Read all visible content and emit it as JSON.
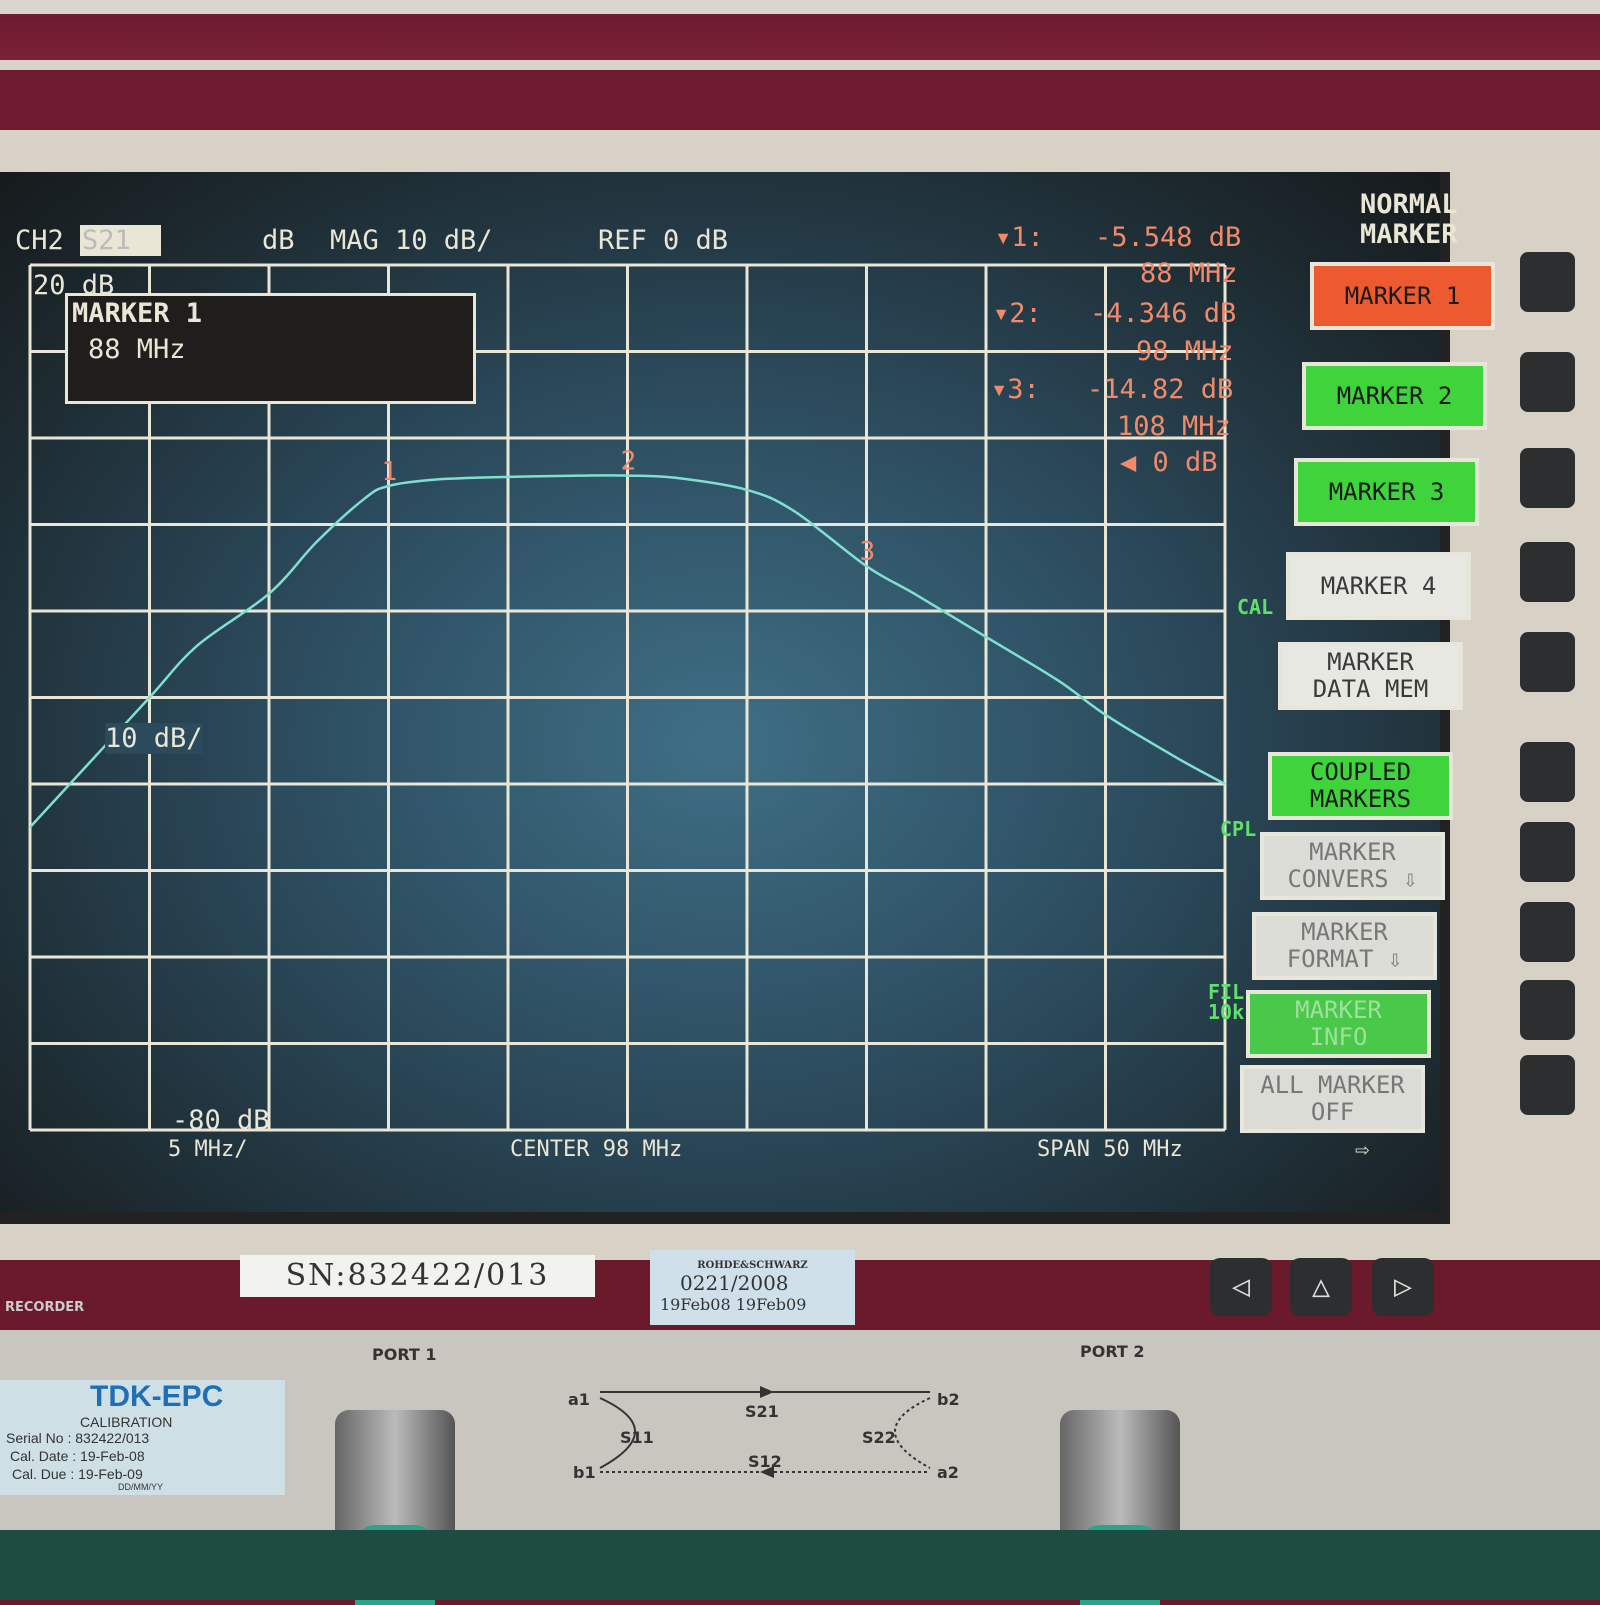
{
  "header": {
    "channel": "CH2",
    "parameter": "S21",
    "format_unit": "dB",
    "format": "MAG 10 dB/",
    "reference": "REF 0 dB"
  },
  "marker_popup": {
    "title": "MARKER 1",
    "value": "88 MHz"
  },
  "marker_readout": [
    {
      "label": "1:",
      "value": "-5.548 dB",
      "freq": "88 MHz"
    },
    {
      "label": "2:",
      "value": "-4.346 dB",
      "freq": "98 MHz"
    },
    {
      "label": "3:",
      "value": "-14.82 dB",
      "freq": "108 MHz"
    }
  ],
  "ref_indicator": "0 dB",
  "plot_labels": {
    "top": "20 dB",
    "scale": "10 dB/",
    "bottom": "-80 dB"
  },
  "footer": {
    "per_div": "5 MHz/",
    "center": "CENTER 98 MHz",
    "span": "SPAN 50 MHz"
  },
  "status": {
    "cal": "CAL",
    "cpl": "CPL",
    "fil": "FIL",
    "fil_bw": "10k"
  },
  "softkey_title": "NORMAL\nMARKER",
  "softkeys": [
    {
      "label": "MARKER 1",
      "state": "active"
    },
    {
      "label": "MARKER 2",
      "state": "on"
    },
    {
      "label": "MARKER 3",
      "state": "on"
    },
    {
      "label": "MARKER 4",
      "state": "off"
    },
    {
      "label": "MARKER\nDATA MEM",
      "state": "off"
    },
    {
      "label": "COUPLED\nMARKERS",
      "state": "on"
    },
    {
      "label": "MARKER\nCONVERS ⇩",
      "state": "off"
    },
    {
      "label": "MARKER\nFORMAT ⇩",
      "state": "off"
    },
    {
      "label": "MARKER\nINFO",
      "state": "on"
    },
    {
      "label": "ALL MARKER\nOFF",
      "state": "off"
    }
  ],
  "colors": {
    "trace": "#7fe0d0",
    "marker": "#f08a6a",
    "active_key": "#ee5a30",
    "on_key": "#3fd33c",
    "grid": "#e9e6d6"
  },
  "labels": {
    "serial": "SN:832422/013",
    "rs_brand": "ROHDE&SCHWARZ",
    "rs_cal": "0221/2008",
    "rs_dates": "19Feb08  19Feb09",
    "port1": "PORT 1",
    "port2": "PORT 2",
    "tdk_brand": "TDK-EPC",
    "tdk_title": "CALIBRATION",
    "tdk_serial": "Serial No : 832422/013",
    "tdk_cal_date": "Cal. Date : 19-Feb-08",
    "tdk_cal_due": "Cal. Due : 19-Feb-09",
    "tdk_format": "DD/MM/YY",
    "recorder": "RECORDER",
    "sparams": {
      "a1": "a1",
      "b1": "b1",
      "a2": "a2",
      "b2": "b2",
      "s21": "S21",
      "s12": "S12",
      "s11": "S11",
      "s22": "S22"
    }
  },
  "chart_data": {
    "type": "line",
    "xlabel": "",
    "ylabel": "",
    "xlim": [
      73,
      123
    ],
    "ylim": [
      -80,
      20
    ],
    "x_divisions": 10,
    "y_divisions": 10,
    "grid": true,
    "x_unit": "MHz",
    "y_unit": "dB",
    "series": [
      {
        "x": [
          73,
          75,
          78,
          80,
          83,
          85,
          87,
          88,
          90,
          93,
          96,
          98,
          100,
          103,
          105,
          108,
          110,
          113,
          116,
          118,
          121,
          123
        ],
        "y": [
          -45,
          -39,
          -30,
          -24,
          -18,
          -12,
          -7,
          -5.548,
          -4.8,
          -4.5,
          -4.35,
          -4.346,
          -4.6,
          -6,
          -8.5,
          -14.82,
          -18,
          -23,
          -28,
          -32,
          -37,
          -40
        ]
      }
    ],
    "markers": [
      {
        "id": 1,
        "x": 88,
        "y": -5.548
      },
      {
        "id": 2,
        "x": 98,
        "y": -4.346
      },
      {
        "id": 3,
        "x": 108,
        "y": -14.82
      }
    ],
    "reference_level": 0
  }
}
